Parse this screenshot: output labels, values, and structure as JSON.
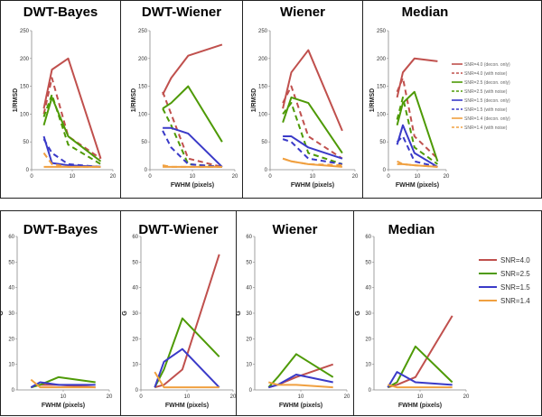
{
  "chart_data": [
    {
      "type": "line",
      "row": "top",
      "title": "DWT-Bayes",
      "xlabel": "",
      "ylabel": "1/RMSD",
      "xlim": [
        0,
        20
      ],
      "ylim": [
        0,
        250
      ],
      "xticks": [
        "0",
        "10",
        "20"
      ],
      "yticks": [
        "0",
        "50",
        "100",
        "150",
        "200",
        "250"
      ],
      "series": [
        {
          "name": "SNR=4.0 (decon. only)",
          "color": "#c0504d",
          "dash": false,
          "x": [
            3,
            5,
            9,
            17
          ],
          "y": [
            110,
            180,
            200,
            20
          ]
        },
        {
          "name": "SNR=4.0 (with noise)",
          "color": "#c0504d",
          "dash": true,
          "x": [
            3,
            5,
            9,
            17
          ],
          "y": [
            100,
            165,
            60,
            20
          ]
        },
        {
          "name": "SNR=2.5 (decon. only)",
          "color": "#4e9a06",
          "dash": false,
          "x": [
            3,
            5,
            9,
            17
          ],
          "y": [
            80,
            130,
            60,
            15
          ]
        },
        {
          "name": "SNR=2.5 (with noise)",
          "color": "#4e9a06",
          "dash": true,
          "x": [
            3,
            5,
            9,
            17
          ],
          "y": [
            95,
            135,
            45,
            10
          ]
        },
        {
          "name": "SNR=1.5 (decon. only)",
          "color": "#3a3ac8",
          "dash": false,
          "x": [
            3,
            5,
            9,
            17
          ],
          "y": [
            60,
            12,
            8,
            5
          ]
        },
        {
          "name": "SNR=1.5 (with noise)",
          "color": "#3a3ac8",
          "dash": true,
          "x": [
            3,
            5,
            9,
            17
          ],
          "y": [
            55,
            30,
            10,
            5
          ]
        },
        {
          "name": "SNR=1.4 (decon. only)",
          "color": "#f0a040",
          "dash": false,
          "x": [
            3,
            5,
            9,
            17
          ],
          "y": [
            5,
            5,
            5,
            5
          ]
        },
        {
          "name": "SNR=1.4 (with noise)",
          "color": "#f0a040",
          "dash": true,
          "x": [
            3,
            5,
            9,
            17
          ],
          "y": [
            30,
            10,
            5,
            5
          ]
        }
      ]
    },
    {
      "type": "line",
      "row": "top",
      "title": "DWT-Wiener",
      "xlabel": "FWHM (pixels)",
      "ylabel": "1/RMSD",
      "xlim": [
        0,
        20
      ],
      "ylim": [
        0,
        250
      ],
      "xticks": [
        "0",
        "10",
        "20"
      ],
      "yticks": [
        "0",
        "50",
        "100",
        "150",
        "200",
        "250"
      ],
      "series": [
        {
          "name": "SNR=4.0 (decon. only)",
          "color": "#c0504d",
          "dash": false,
          "x": [
            3,
            5,
            9,
            17
          ],
          "y": [
            135,
            165,
            205,
            225
          ]
        },
        {
          "name": "SNR=4.0 (with noise)",
          "color": "#c0504d",
          "dash": true,
          "x": [
            3,
            5,
            9,
            17
          ],
          "y": [
            140,
            100,
            20,
            5
          ]
        },
        {
          "name": "SNR=2.5 (decon. only)",
          "color": "#4e9a06",
          "dash": false,
          "x": [
            3,
            5,
            9,
            17
          ],
          "y": [
            110,
            120,
            150,
            50
          ]
        },
        {
          "name": "SNR=2.5 (with noise)",
          "color": "#4e9a06",
          "dash": true,
          "x": [
            3,
            5,
            9,
            17
          ],
          "y": [
            110,
            80,
            10,
            5
          ]
        },
        {
          "name": "SNR=1.5 (decon. only)",
          "color": "#3a3ac8",
          "dash": false,
          "x": [
            3,
            5,
            9,
            17
          ],
          "y": [
            75,
            75,
            65,
            5
          ]
        },
        {
          "name": "SNR=1.5 (with noise)",
          "color": "#3a3ac8",
          "dash": true,
          "x": [
            3,
            5,
            9,
            17
          ],
          "y": [
            70,
            40,
            10,
            5
          ]
        },
        {
          "name": "SNR=1.4 (decon. only)",
          "color": "#f0a040",
          "dash": false,
          "x": [
            3,
            5,
            9,
            17
          ],
          "y": [
            5,
            5,
            5,
            5
          ]
        },
        {
          "name": "SNR=1.4 (with noise)",
          "color": "#f0a040",
          "dash": true,
          "x": [
            3,
            5,
            9,
            17
          ],
          "y": [
            8,
            5,
            5,
            5
          ]
        }
      ]
    },
    {
      "type": "line",
      "row": "top",
      "title": "Wiener",
      "xlabel": "FWHM (pixels)",
      "ylabel": "1/RMSD",
      "xlim": [
        0,
        20
      ],
      "ylim": [
        0,
        250
      ],
      "xticks": [
        "0",
        "10",
        "20"
      ],
      "yticks": [
        "0",
        "50",
        "100",
        "150",
        "200",
        "250"
      ],
      "series": [
        {
          "name": "SNR=4.0 (decon. only)",
          "color": "#c0504d",
          "dash": false,
          "x": [
            3,
            5,
            9,
            17
          ],
          "y": [
            110,
            175,
            215,
            70
          ]
        },
        {
          "name": "SNR=4.0 (with noise)",
          "color": "#c0504d",
          "dash": true,
          "x": [
            3,
            5,
            9,
            17
          ],
          "y": [
            120,
            150,
            60,
            20
          ]
        },
        {
          "name": "SNR=2.5 (decon. only)",
          "color": "#4e9a06",
          "dash": false,
          "x": [
            3,
            5,
            9,
            17
          ],
          "y": [
            85,
            130,
            120,
            30
          ]
        },
        {
          "name": "SNR=2.5 (with noise)",
          "color": "#4e9a06",
          "dash": true,
          "x": [
            3,
            5,
            9,
            17
          ],
          "y": [
            100,
            120,
            30,
            10
          ]
        },
        {
          "name": "SNR=1.5 (decon. only)",
          "color": "#3a3ac8",
          "dash": false,
          "x": [
            3,
            5,
            9,
            17
          ],
          "y": [
            60,
            60,
            40,
            20
          ]
        },
        {
          "name": "SNR=1.5 (with noise)",
          "color": "#3a3ac8",
          "dash": true,
          "x": [
            3,
            5,
            9,
            17
          ],
          "y": [
            55,
            50,
            20,
            10
          ]
        },
        {
          "name": "SNR=1.4 (decon. only)",
          "color": "#f0a040",
          "dash": false,
          "x": [
            3,
            5,
            9,
            17
          ],
          "y": [
            20,
            15,
            10,
            5
          ]
        },
        {
          "name": "SNR=1.4 (with noise)",
          "color": "#f0a040",
          "dash": true,
          "x": [
            3,
            5,
            9,
            17
          ],
          "y": [
            20,
            15,
            10,
            8
          ]
        }
      ]
    },
    {
      "type": "line",
      "row": "top",
      "title": "Median",
      "xlabel": "FWHM (pixels)",
      "ylabel": "1/RMSD",
      "xlim": [
        0,
        20
      ],
      "ylim": [
        0,
        250
      ],
      "xticks": [
        "0",
        "10",
        "20"
      ],
      "yticks": [
        "0",
        "50",
        "100",
        "150",
        "200",
        "250"
      ],
      "legend": "top-right",
      "series": [
        {
          "name": "SNR=4.0 (decon. only)",
          "color": "#c0504d",
          "dash": false,
          "x": [
            3,
            5,
            9,
            17
          ],
          "y": [
            130,
            175,
            200,
            195
          ]
        },
        {
          "name": "SNR=4.0 (with noise)",
          "color": "#c0504d",
          "dash": true,
          "x": [
            3,
            5,
            9,
            17
          ],
          "y": [
            140,
            165,
            60,
            20
          ]
        },
        {
          "name": "SNR=2.5 (decon. only)",
          "color": "#4e9a06",
          "dash": false,
          "x": [
            3,
            5,
            9,
            17
          ],
          "y": [
            80,
            120,
            140,
            15
          ]
        },
        {
          "name": "SNR=2.5 (with noise)",
          "color": "#4e9a06",
          "dash": true,
          "x": [
            3,
            5,
            9,
            17
          ],
          "y": [
            90,
            130,
            40,
            10
          ]
        },
        {
          "name": "SNR=1.5 (decon. only)",
          "color": "#3a3ac8",
          "dash": false,
          "x": [
            3,
            5,
            9,
            17
          ],
          "y": [
            45,
            80,
            30,
            5
          ]
        },
        {
          "name": "SNR=1.5 (with noise)",
          "color": "#3a3ac8",
          "dash": true,
          "x": [
            3,
            5,
            9,
            17
          ],
          "y": [
            50,
            60,
            15,
            5
          ]
        },
        {
          "name": "SNR=1.4 (decon. only)",
          "color": "#f0a040",
          "dash": false,
          "x": [
            3,
            5,
            9,
            17
          ],
          "y": [
            10,
            10,
            8,
            5
          ]
        },
        {
          "name": "SNR=1.4 (with noise)",
          "color": "#f0a040",
          "dash": true,
          "x": [
            3,
            5,
            9,
            17
          ],
          "y": [
            15,
            10,
            8,
            5
          ]
        }
      ]
    },
    {
      "type": "line",
      "row": "bottom",
      "title": "DWT-Bayes",
      "xlabel": "FWHM (pixels)",
      "ylabel": "G",
      "xlim": [
        0,
        20
      ],
      "ylim": [
        0,
        60
      ],
      "xticks": [
        "10",
        "20"
      ],
      "yticks": [
        "0",
        "10",
        "20",
        "30",
        "40",
        "50",
        "60"
      ],
      "series": [
        {
          "name": "SNR=4.0",
          "color": "#c0504d",
          "dash": false,
          "x": [
            3,
            5,
            9,
            17
          ],
          "y": [
            1,
            2,
            2,
            1
          ]
        },
        {
          "name": "SNR=2.5",
          "color": "#4e9a06",
          "dash": false,
          "x": [
            3,
            5,
            9,
            17
          ],
          "y": [
            1,
            2,
            5,
            3
          ]
        },
        {
          "name": "SNR=1.5",
          "color": "#3a3ac8",
          "dash": false,
          "x": [
            3,
            5,
            9,
            17
          ],
          "y": [
            1,
            3,
            2,
            2
          ]
        },
        {
          "name": "SNR=1.4",
          "color": "#f0a040",
          "dash": false,
          "x": [
            3,
            5,
            9,
            17
          ],
          "y": [
            4,
            1,
            1,
            1
          ]
        }
      ]
    },
    {
      "type": "line",
      "row": "bottom",
      "title": "DWT-Wiener",
      "xlabel": "FWHM (pixels)",
      "ylabel": "G",
      "xlim": [
        0,
        20
      ],
      "ylim": [
        0,
        60
      ],
      "xticks": [
        "0",
        "10",
        "20"
      ],
      "yticks": [
        "0",
        "10",
        "20",
        "30",
        "40",
        "50",
        "60"
      ],
      "series": [
        {
          "name": "SNR=4.0",
          "color": "#c0504d",
          "dash": false,
          "x": [
            3,
            5,
            9,
            17
          ],
          "y": [
            1,
            2,
            8,
            53
          ]
        },
        {
          "name": "SNR=2.5",
          "color": "#4e9a06",
          "dash": false,
          "x": [
            3,
            5,
            9,
            17
          ],
          "y": [
            1,
            8,
            28,
            13
          ]
        },
        {
          "name": "SNR=1.5",
          "color": "#3a3ac8",
          "dash": false,
          "x": [
            3,
            5,
            9,
            17
          ],
          "y": [
            1,
            11,
            16,
            1
          ]
        },
        {
          "name": "SNR=1.4",
          "color": "#f0a040",
          "dash": false,
          "x": [
            3,
            5,
            9,
            17
          ],
          "y": [
            7,
            1,
            1,
            1
          ]
        }
      ]
    },
    {
      "type": "line",
      "row": "bottom",
      "title": "Wiener",
      "xlabel": "FWHM (pixels)",
      "ylabel": "G",
      "xlim": [
        0,
        20
      ],
      "ylim": [
        0,
        60
      ],
      "xticks": [
        "10",
        "20"
      ],
      "yticks": [
        "0",
        "10",
        "20",
        "30",
        "40",
        "50",
        "60"
      ],
      "series": [
        {
          "name": "SNR=4.0",
          "color": "#c0504d",
          "dash": false,
          "x": [
            3,
            5,
            9,
            17
          ],
          "y": [
            1,
            2,
            5,
            10
          ]
        },
        {
          "name": "SNR=2.5",
          "color": "#4e9a06",
          "dash": false,
          "x": [
            3,
            5,
            9,
            17
          ],
          "y": [
            1,
            5,
            14,
            5
          ]
        },
        {
          "name": "SNR=1.5",
          "color": "#3a3ac8",
          "dash": false,
          "x": [
            3,
            5,
            9,
            17
          ],
          "y": [
            1,
            2,
            6,
            3
          ]
        },
        {
          "name": "SNR=1.4",
          "color": "#f0a040",
          "dash": false,
          "x": [
            3,
            5,
            9,
            17
          ],
          "y": [
            3,
            2,
            2,
            1
          ]
        }
      ]
    },
    {
      "type": "line",
      "row": "bottom",
      "title": "Median",
      "xlabel": "FWHM (pixels)",
      "ylabel": "G",
      "xlim": [
        0,
        20
      ],
      "ylim": [
        0,
        60
      ],
      "xticks": [
        "10",
        "20"
      ],
      "yticks": [
        "0",
        "10",
        "20",
        "30",
        "40",
        "50",
        "60"
      ],
      "legend": "right",
      "series": [
        {
          "name": "SNR=4.0",
          "color": "#c0504d",
          "dash": false,
          "x": [
            3,
            5,
            9,
            17
          ],
          "y": [
            1,
            2,
            5,
            29
          ]
        },
        {
          "name": "SNR=2.5",
          "color": "#4e9a06",
          "dash": false,
          "x": [
            3,
            5,
            9,
            17
          ],
          "y": [
            1,
            3,
            17,
            3
          ]
        },
        {
          "name": "SNR=1.5",
          "color": "#3a3ac8",
          "dash": false,
          "x": [
            3,
            5,
            9,
            17
          ],
          "y": [
            1,
            7,
            3,
            2
          ]
        },
        {
          "name": "SNR=1.4",
          "color": "#f0a040",
          "dash": false,
          "x": [
            3,
            5,
            9,
            17
          ],
          "y": [
            2,
            1,
            1,
            1
          ]
        }
      ]
    }
  ]
}
